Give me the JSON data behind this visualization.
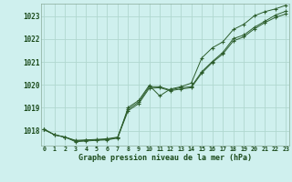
{
  "title": "Graphe pression niveau de la mer (hPa)",
  "background_color": "#cff0ee",
  "grid_color": "#b0d8d0",
  "line_color": "#2d5e2d",
  "marker_color": "#2d5e2d",
  "xlim": [
    -0.3,
    23.3
  ],
  "ylim": [
    1017.35,
    1023.55
  ],
  "yticks": [
    1018,
    1019,
    1020,
    1021,
    1022,
    1023
  ],
  "series": [
    [
      1018.05,
      1017.82,
      1017.72,
      1017.58,
      1017.6,
      1017.62,
      1017.65,
      1017.72,
      1018.95,
      1019.25,
      1019.92,
      1019.92,
      1019.78,
      1019.88,
      1019.92,
      1020.58,
      1021.02,
      1021.42,
      1022.02,
      1022.18,
      1022.52,
      1022.78,
      1023.05,
      1023.22
    ],
    [
      1018.05,
      1017.82,
      1017.72,
      1017.55,
      1017.58,
      1017.6,
      1017.62,
      1017.7,
      1018.88,
      1019.18,
      1019.85,
      1019.88,
      1019.75,
      1019.82,
      1019.88,
      1020.52,
      1020.98,
      1021.35,
      1021.92,
      1022.1,
      1022.45,
      1022.72,
      1022.95,
      1023.1
    ],
    [
      1018.08,
      1017.82,
      1017.72,
      1017.52,
      1017.55,
      1017.58,
      1017.6,
      1017.68,
      1019.02,
      1019.32,
      1019.98,
      1019.52,
      1019.82,
      1019.92,
      1020.08,
      1021.18,
      1021.62,
      1021.88,
      1022.42,
      1022.65,
      1023.02,
      1023.2,
      1023.32,
      1023.48
    ]
  ]
}
